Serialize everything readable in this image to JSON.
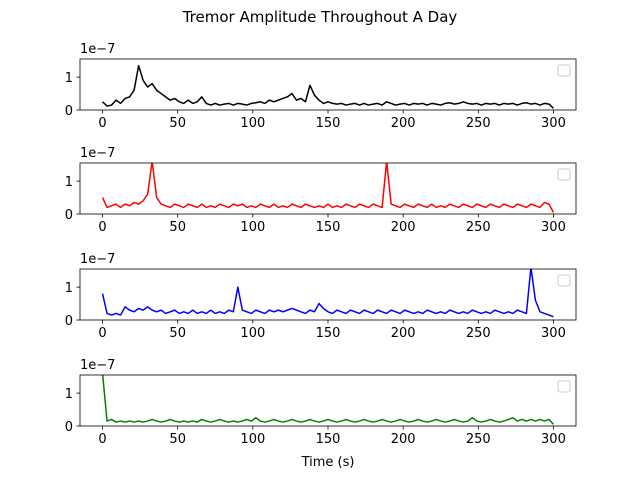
{
  "title": "Tremor Amplitude Throughout A Day",
  "chart_data": [
    {
      "type": "line",
      "color": "#000000",
      "offset_label": "1e−7",
      "legend": "upper right",
      "xlim": [
        -15,
        315
      ],
      "xticks": [
        0,
        50,
        100,
        150,
        200,
        250,
        300
      ],
      "ylim": [
        0,
        1.55
      ],
      "yticks": [
        0,
        1
      ],
      "x": [
        0,
        3,
        6,
        9,
        12,
        15,
        18,
        21,
        24,
        27,
        30,
        33,
        36,
        39,
        42,
        45,
        48,
        51,
        54,
        57,
        60,
        63,
        66,
        69,
        72,
        75,
        78,
        81,
        84,
        87,
        90,
        93,
        96,
        99,
        102,
        105,
        108,
        111,
        114,
        117,
        120,
        123,
        126,
        129,
        132,
        135,
        138,
        141,
        144,
        147,
        150,
        153,
        156,
        159,
        162,
        165,
        168,
        171,
        174,
        177,
        180,
        183,
        186,
        189,
        192,
        195,
        198,
        201,
        204,
        207,
        210,
        213,
        216,
        219,
        222,
        225,
        228,
        231,
        234,
        237,
        240,
        243,
        246,
        249,
        252,
        255,
        258,
        261,
        264,
        267,
        270,
        273,
        276,
        279,
        282,
        285,
        288,
        291,
        294,
        297,
        300
      ],
      "values": [
        0.25,
        0.12,
        0.15,
        0.3,
        0.2,
        0.35,
        0.4,
        0.6,
        1.35,
        0.9,
        0.7,
        0.8,
        0.6,
        0.5,
        0.4,
        0.3,
        0.35,
        0.25,
        0.2,
        0.3,
        0.2,
        0.25,
        0.4,
        0.2,
        0.15,
        0.2,
        0.15,
        0.18,
        0.2,
        0.15,
        0.2,
        0.18,
        0.15,
        0.2,
        0.22,
        0.25,
        0.2,
        0.3,
        0.25,
        0.3,
        0.35,
        0.4,
        0.5,
        0.3,
        0.35,
        0.25,
        0.75,
        0.45,
        0.3,
        0.2,
        0.25,
        0.2,
        0.18,
        0.2,
        0.15,
        0.18,
        0.2,
        0.15,
        0.2,
        0.15,
        0.18,
        0.2,
        0.15,
        0.25,
        0.2,
        0.15,
        0.18,
        0.2,
        0.15,
        0.2,
        0.18,
        0.2,
        0.15,
        0.2,
        0.18,
        0.15,
        0.2,
        0.22,
        0.18,
        0.2,
        0.25,
        0.2,
        0.18,
        0.2,
        0.15,
        0.2,
        0.18,
        0.2,
        0.15,
        0.2,
        0.18,
        0.2,
        0.15,
        0.2,
        0.22,
        0.18,
        0.2,
        0.15,
        0.2,
        0.18,
        0.05
      ]
    },
    {
      "type": "line",
      "color": "#ff0000",
      "offset_label": "1e−7",
      "legend": "upper right",
      "xlim": [
        -15,
        315
      ],
      "xticks": [
        0,
        50,
        100,
        150,
        200,
        250,
        300
      ],
      "ylim": [
        0,
        1.55
      ],
      "yticks": [
        0,
        1
      ],
      "x": [
        0,
        3,
        6,
        9,
        12,
        15,
        18,
        21,
        24,
        27,
        30,
        33,
        36,
        39,
        42,
        45,
        48,
        51,
        54,
        57,
        60,
        63,
        66,
        69,
        72,
        75,
        78,
        81,
        84,
        87,
        90,
        93,
        96,
        99,
        102,
        105,
        108,
        111,
        114,
        117,
        120,
        123,
        126,
        129,
        132,
        135,
        138,
        141,
        144,
        147,
        150,
        153,
        156,
        159,
        162,
        165,
        168,
        171,
        174,
        177,
        180,
        183,
        186,
        189,
        192,
        195,
        198,
        201,
        204,
        207,
        210,
        213,
        216,
        219,
        222,
        225,
        228,
        231,
        234,
        237,
        240,
        243,
        246,
        249,
        252,
        255,
        258,
        261,
        264,
        267,
        270,
        273,
        276,
        279,
        282,
        285,
        288,
        291,
        294,
        297,
        300
      ],
      "values": [
        0.5,
        0.2,
        0.25,
        0.3,
        0.2,
        0.3,
        0.25,
        0.35,
        0.3,
        0.4,
        0.6,
        1.6,
        0.5,
        0.3,
        0.25,
        0.2,
        0.3,
        0.25,
        0.2,
        0.3,
        0.25,
        0.2,
        0.3,
        0.2,
        0.25,
        0.2,
        0.3,
        0.25,
        0.2,
        0.3,
        0.25,
        0.3,
        0.2,
        0.25,
        0.2,
        0.3,
        0.25,
        0.2,
        0.3,
        0.2,
        0.25,
        0.2,
        0.3,
        0.25,
        0.2,
        0.3,
        0.25,
        0.2,
        0.25,
        0.2,
        0.3,
        0.2,
        0.25,
        0.2,
        0.3,
        0.25,
        0.2,
        0.3,
        0.25,
        0.2,
        0.3,
        0.25,
        0.2,
        1.6,
        0.3,
        0.25,
        0.2,
        0.3,
        0.25,
        0.2,
        0.3,
        0.25,
        0.2,
        0.3,
        0.2,
        0.25,
        0.2,
        0.3,
        0.25,
        0.2,
        0.3,
        0.25,
        0.2,
        0.3,
        0.25,
        0.2,
        0.3,
        0.25,
        0.2,
        0.3,
        0.25,
        0.2,
        0.3,
        0.25,
        0.2,
        0.3,
        0.25,
        0.2,
        0.35,
        0.3,
        0.05
      ]
    },
    {
      "type": "line",
      "color": "#0000ff",
      "offset_label": "1e−7",
      "legend": "upper right",
      "xlim": [
        -15,
        315
      ],
      "xticks": [
        0,
        50,
        100,
        150,
        200,
        250,
        300
      ],
      "ylim": [
        0,
        1.55
      ],
      "yticks": [
        0,
        1
      ],
      "x": [
        0,
        3,
        6,
        9,
        12,
        15,
        18,
        21,
        24,
        27,
        30,
        33,
        36,
        39,
        42,
        45,
        48,
        51,
        54,
        57,
        60,
        63,
        66,
        69,
        72,
        75,
        78,
        81,
        84,
        87,
        90,
        93,
        96,
        99,
        102,
        105,
        108,
        111,
        114,
        117,
        120,
        123,
        126,
        129,
        132,
        135,
        138,
        141,
        144,
        147,
        150,
        153,
        156,
        159,
        162,
        165,
        168,
        171,
        174,
        177,
        180,
        183,
        186,
        189,
        192,
        195,
        198,
        201,
        204,
        207,
        210,
        213,
        216,
        219,
        222,
        225,
        228,
        231,
        234,
        237,
        240,
        243,
        246,
        249,
        252,
        255,
        258,
        261,
        264,
        267,
        270,
        273,
        276,
        279,
        282,
        285,
        288,
        291,
        294,
        297,
        300
      ],
      "values": [
        0.8,
        0.2,
        0.15,
        0.2,
        0.15,
        0.4,
        0.3,
        0.25,
        0.35,
        0.3,
        0.4,
        0.3,
        0.25,
        0.3,
        0.2,
        0.25,
        0.3,
        0.2,
        0.25,
        0.2,
        0.3,
        0.2,
        0.25,
        0.2,
        0.3,
        0.2,
        0.25,
        0.2,
        0.3,
        0.25,
        1.0,
        0.3,
        0.25,
        0.2,
        0.3,
        0.25,
        0.2,
        0.3,
        0.25,
        0.3,
        0.25,
        0.3,
        0.35,
        0.3,
        0.25,
        0.2,
        0.3,
        0.25,
        0.5,
        0.35,
        0.25,
        0.2,
        0.3,
        0.25,
        0.2,
        0.3,
        0.25,
        0.2,
        0.3,
        0.25,
        0.2,
        0.3,
        0.25,
        0.2,
        0.3,
        0.25,
        0.2,
        0.3,
        0.25,
        0.2,
        0.25,
        0.2,
        0.3,
        0.25,
        0.2,
        0.25,
        0.2,
        0.3,
        0.25,
        0.2,
        0.25,
        0.2,
        0.3,
        0.25,
        0.2,
        0.25,
        0.2,
        0.3,
        0.25,
        0.2,
        0.25,
        0.2,
        0.3,
        0.25,
        0.2,
        1.6,
        0.6,
        0.25,
        0.2,
        0.15,
        0.1
      ]
    },
    {
      "type": "line",
      "color": "#008000",
      "offset_label": "1e−7",
      "legend": "upper right",
      "xlabel": "Time (s)",
      "xlim": [
        -15,
        315
      ],
      "xticks": [
        0,
        50,
        100,
        150,
        200,
        250,
        300
      ],
      "ylim": [
        0,
        1.55
      ],
      "yticks": [
        0,
        1
      ],
      "x": [
        0,
        3,
        6,
        9,
        12,
        15,
        18,
        21,
        24,
        27,
        30,
        33,
        36,
        39,
        42,
        45,
        48,
        51,
        54,
        57,
        60,
        63,
        66,
        69,
        72,
        75,
        78,
        81,
        84,
        87,
        90,
        93,
        96,
        99,
        102,
        105,
        108,
        111,
        114,
        117,
        120,
        123,
        126,
        129,
        132,
        135,
        138,
        141,
        144,
        147,
        150,
        153,
        156,
        159,
        162,
        165,
        168,
        171,
        174,
        177,
        180,
        183,
        186,
        189,
        192,
        195,
        198,
        201,
        204,
        207,
        210,
        213,
        216,
        219,
        222,
        225,
        228,
        231,
        234,
        237,
        240,
        243,
        246,
        249,
        252,
        255,
        258,
        261,
        264,
        267,
        270,
        273,
        276,
        279,
        282,
        285,
        288,
        291,
        294,
        297,
        300
      ],
      "values": [
        1.6,
        0.15,
        0.2,
        0.12,
        0.15,
        0.12,
        0.15,
        0.12,
        0.15,
        0.12,
        0.15,
        0.2,
        0.15,
        0.12,
        0.15,
        0.2,
        0.15,
        0.12,
        0.15,
        0.12,
        0.15,
        0.12,
        0.2,
        0.15,
        0.12,
        0.15,
        0.2,
        0.15,
        0.12,
        0.15,
        0.12,
        0.15,
        0.2,
        0.15,
        0.25,
        0.15,
        0.12,
        0.15,
        0.2,
        0.15,
        0.12,
        0.15,
        0.2,
        0.15,
        0.12,
        0.15,
        0.2,
        0.15,
        0.12,
        0.15,
        0.2,
        0.15,
        0.12,
        0.15,
        0.2,
        0.15,
        0.12,
        0.15,
        0.2,
        0.15,
        0.12,
        0.15,
        0.2,
        0.15,
        0.12,
        0.15,
        0.2,
        0.15,
        0.12,
        0.15,
        0.2,
        0.15,
        0.12,
        0.15,
        0.2,
        0.15,
        0.12,
        0.15,
        0.2,
        0.15,
        0.12,
        0.15,
        0.25,
        0.15,
        0.12,
        0.15,
        0.2,
        0.15,
        0.12,
        0.15,
        0.2,
        0.25,
        0.15,
        0.2,
        0.15,
        0.2,
        0.15,
        0.2,
        0.15,
        0.2,
        0.05
      ]
    }
  ]
}
